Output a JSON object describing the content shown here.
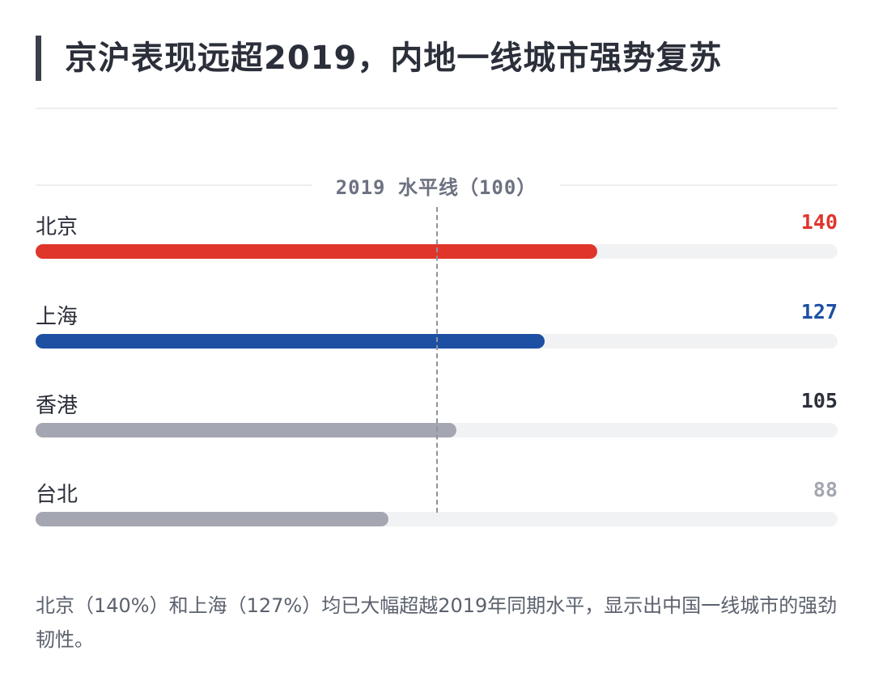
{
  "title": "京沪表现远超2019，内地一线城市强势复苏",
  "reference": {
    "label": "2019 水平线（100）",
    "value": 100
  },
  "summary": "北京（140%）和上海（127%）均已大幅超越2019年同期水平，显示出中国一线城市的强劲韧性。",
  "chart_data": {
    "type": "bar",
    "orientation": "horizontal",
    "categories": [
      "北京",
      "上海",
      "香港",
      "台北"
    ],
    "values": [
      140,
      127,
      105,
      88
    ],
    "value_labels": [
      "140",
      "127",
      "105",
      "88"
    ],
    "xlim": [
      0,
      200
    ],
    "reference_line": 100,
    "colors": [
      "#e0352b",
      "#1d4fa3",
      "#a4a7b1",
      "#a4a7b1"
    ],
    "label_colors": [
      "#e0352b",
      "#1d4fa3",
      "#2b2f3a",
      "#a4a7b1"
    ],
    "track_color": "#f1f2f4"
  }
}
